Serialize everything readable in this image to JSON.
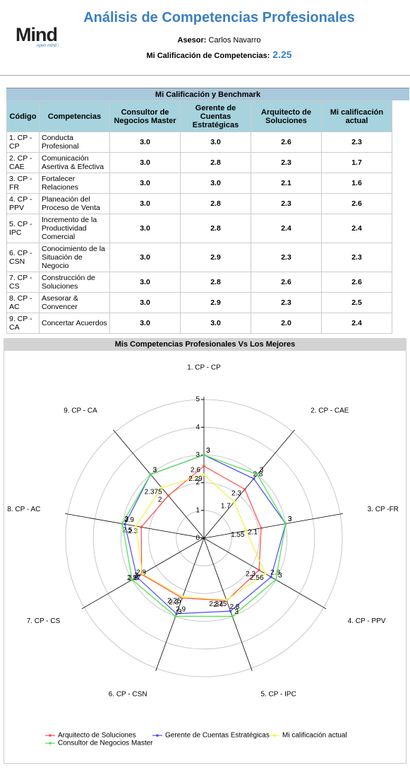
{
  "header": {
    "logo": "Mind",
    "logo_tagline": "open mind !",
    "title": "Análisis de Competencias Profesionales",
    "advisor_label": "Asesor:",
    "advisor": "Carlos Navarro",
    "score_label": "Mi Calificación de Competencias:",
    "score": "2.25"
  },
  "table": {
    "title": "Mi Calificación y Benchmark",
    "columns": [
      "Código",
      "Competencias",
      "Consultor de Negocios Master",
      "Gerente de Cuentas Estratégicas",
      "Arquitecto de Soluciones",
      "Mi calificación actual"
    ],
    "rows": [
      [
        "1. CP - CP",
        "Conducta Profesional",
        "3.0",
        "3.0",
        "2.6",
        "2.3"
      ],
      [
        "2. CP - CAE",
        "Comunicación Asertiva & Efectiva",
        "3.0",
        "2.8",
        "2.3",
        "1.7"
      ],
      [
        "3. CP - FR",
        "Fortalecer Relaciones",
        "3.0",
        "3.0",
        "2.1",
        "1.6"
      ],
      [
        "4. CP - PPV",
        "Planeación del Proceso de Venta",
        "3.0",
        "2.8",
        "2.3",
        "2.6"
      ],
      [
        "5. CP - IPC",
        "Incremento de la Productividad Comercial",
        "3.0",
        "2.8",
        "2.4",
        "2.4"
      ],
      [
        "6. CP - CSN",
        "Conocimiento de la Situación de Negocio",
        "3.0",
        "2.9",
        "2.3",
        "2.3"
      ],
      [
        "7. CP - CS",
        "Construcción de Soluciones",
        "3.0",
        "2.8",
        "2.6",
        "2.6"
      ],
      [
        "8. CP - AC",
        "Asesorar & Convencer",
        "3.0",
        "2.9",
        "2.3",
        "2.5"
      ],
      [
        "9. CP - CA",
        "Concertar Acuerdos",
        "3.0",
        "3.0",
        "2.0",
        "2.4"
      ]
    ]
  },
  "chart_data": {
    "type": "radar",
    "title": "Mis Competencias Profesionales Vs Los Mejores",
    "categories": [
      "1. CP - CP",
      "2. CP - CAE",
      "3. CP -FR",
      "4. CP - PPV",
      "5. CP - IPC",
      "6. CP - CSN",
      "7. CP - CS",
      "8. CP - AC",
      "9. CP - CA"
    ],
    "rlim": [
      0,
      5
    ],
    "rticks": [
      0,
      1,
      2,
      3,
      4,
      5
    ],
    "grid": true,
    "legend": "bottom",
    "series": [
      {
        "name": "Arquitecto de Soluciones",
        "color": "#ff4a4a",
        "values": [
          2.6,
          2.3,
          2.1,
          2.3,
          2.4,
          2.3,
          2.6,
          2.3,
          2
        ]
      },
      {
        "name": "Gerente de Cuentas Estratégicas",
        "color": "#4a4aff",
        "values": [
          3,
          2.8,
          3,
          2.8,
          2.8,
          2.9,
          2.8,
          2.9,
          3
        ]
      },
      {
        "name": "Mi calificación actual",
        "color": "#f2f24a",
        "values": [
          2.29,
          1.7,
          1.55,
          2.56,
          2.375,
          2.25,
          2.57,
          2.5,
          2.375
        ]
      },
      {
        "name": "Consultor de Negocios Master",
        "color": "#4ae24a",
        "values": [
          3,
          3,
          3,
          3,
          3,
          3,
          3,
          3,
          3
        ]
      }
    ]
  }
}
